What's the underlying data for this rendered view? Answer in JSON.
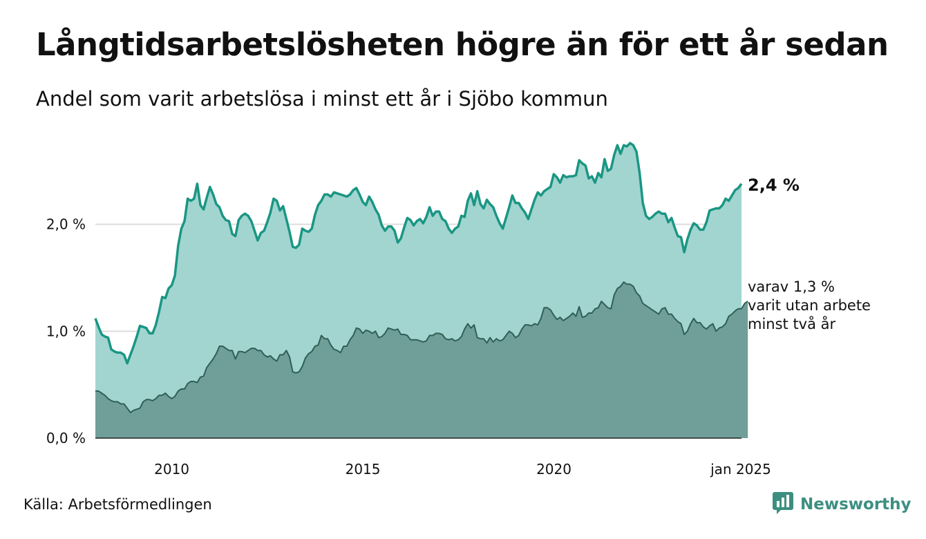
{
  "title": "Långtidsarbetslösheten högre än för ett år sedan",
  "subtitle": "Andel som varit arbetslösa i minst ett år i Sjöbo kommun",
  "source": "Källa: Arbetsförmedlingen",
  "brand": "Newsworthy",
  "colors": {
    "line_total": "#1a9683",
    "area_total": "#a2d5d0",
    "line_two_years": "#2f5f56",
    "area_two_years": "#6f9f98",
    "grid": "#dddddd"
  },
  "chart_data": {
    "type": "area",
    "title": "Långtidsarbetslösheten högre än för ett år sedan",
    "subtitle": "Andel som varit arbetslösa i minst ett år i Sjöbo kommun",
    "x_start": 2008.0,
    "x_step": 0.0833,
    "ylim": [
      0,
      3
    ],
    "y_ticks": [
      0,
      1,
      2
    ],
    "y_tick_labels": [
      "0,0 %",
      "1,0 %",
      "2,0 %"
    ],
    "x_ticks": [
      2010,
      2015,
      2020,
      2025.0
    ],
    "x_tick_labels": [
      "2010",
      "2015",
      "2020",
      "jan 2025"
    ],
    "end_label": "2,4 %",
    "note_lines": [
      "varav 1,3 %",
      "varit utan arbete",
      "minst två år"
    ],
    "series": [
      {
        "values": [
          1.12,
          1.04,
          0.97,
          0.95,
          0.94,
          0.83,
          0.81,
          0.8,
          0.8,
          0.78,
          0.7,
          0.78,
          0.86,
          0.95,
          1.05,
          1.04,
          1.03,
          0.98,
          0.98,
          1.06,
          1.18,
          1.32,
          1.31,
          1.4,
          1.43,
          1.52,
          1.8,
          1.96,
          2.03,
          2.24,
          2.22,
          2.24,
          2.38,
          2.18,
          2.14,
          2.25,
          2.35,
          2.28,
          2.19,
          2.16,
          2.08,
          2.04,
          2.03,
          1.91,
          1.89,
          2.04,
          2.08,
          2.1,
          2.08,
          2.03,
          1.94,
          1.85,
          1.92,
          1.94,
          2.02,
          2.11,
          2.24,
          2.22,
          2.13,
          2.17,
          2.05,
          1.93,
          1.79,
          1.78,
          1.81,
          1.96,
          1.94,
          1.93,
          1.96,
          2.09,
          2.18,
          2.22,
          2.28,
          2.28,
          2.26,
          2.3,
          2.29,
          2.28,
          2.27,
          2.26,
          2.28,
          2.32,
          2.34,
          2.28,
          2.21,
          2.18,
          2.26,
          2.21,
          2.14,
          2.09,
          1.99,
          1.94,
          1.98,
          1.98,
          1.94,
          1.83,
          1.87,
          1.97,
          2.06,
          2.04,
          1.99,
          2.03,
          2.05,
          2.01,
          2.07,
          2.16,
          2.08,
          2.12,
          2.12,
          2.05,
          2.03,
          1.96,
          1.92,
          1.96,
          1.98,
          2.08,
          2.07,
          2.22,
          2.29,
          2.18,
          2.31,
          2.19,
          2.15,
          2.23,
          2.19,
          2.16,
          2.08,
          2.01,
          1.96,
          2.06,
          2.16,
          2.27,
          2.2,
          2.2,
          2.15,
          2.11,
          2.05,
          2.14,
          2.23,
          2.3,
          2.27,
          2.31,
          2.33,
          2.35,
          2.47,
          2.44,
          2.39,
          2.46,
          2.44,
          2.45,
          2.45,
          2.46,
          2.6,
          2.57,
          2.55,
          2.43,
          2.45,
          2.39,
          2.48,
          2.44,
          2.61,
          2.5,
          2.52,
          2.65,
          2.74,
          2.66,
          2.74,
          2.73,
          2.76,
          2.74,
          2.68,
          2.48,
          2.2,
          2.08,
          2.05,
          2.07,
          2.1,
          2.12,
          2.1,
          2.1,
          2.02,
          2.06,
          1.97,
          1.89,
          1.88,
          1.74,
          1.86,
          1.95,
          2.01,
          1.99,
          1.95,
          1.95,
          2.02,
          2.13,
          2.14,
          2.15,
          2.15,
          2.18,
          2.24,
          2.22,
          2.27,
          2.32,
          2.34,
          2.38
        ]
      },
      {
        "values": [
          0.44,
          0.44,
          0.42,
          0.4,
          0.37,
          0.35,
          0.34,
          0.34,
          0.32,
          0.32,
          0.28,
          0.24,
          0.26,
          0.27,
          0.28,
          0.34,
          0.36,
          0.36,
          0.35,
          0.37,
          0.4,
          0.4,
          0.42,
          0.39,
          0.37,
          0.39,
          0.44,
          0.46,
          0.46,
          0.51,
          0.53,
          0.53,
          0.52,
          0.57,
          0.58,
          0.66,
          0.7,
          0.74,
          0.79,
          0.86,
          0.86,
          0.84,
          0.82,
          0.82,
          0.74,
          0.81,
          0.81,
          0.8,
          0.82,
          0.84,
          0.84,
          0.82,
          0.82,
          0.78,
          0.76,
          0.77,
          0.74,
          0.72,
          0.78,
          0.78,
          0.82,
          0.76,
          0.62,
          0.61,
          0.62,
          0.67,
          0.75,
          0.79,
          0.81,
          0.86,
          0.87,
          0.96,
          0.93,
          0.93,
          0.87,
          0.83,
          0.82,
          0.8,
          0.86,
          0.86,
          0.92,
          0.96,
          1.03,
          1.02,
          0.98,
          1.01,
          1.0,
          0.98,
          1.0,
          0.94,
          0.95,
          0.98,
          1.03,
          1.02,
          1.01,
          1.02,
          0.97,
          0.97,
          0.96,
          0.92,
          0.92,
          0.92,
          0.91,
          0.9,
          0.91,
          0.96,
          0.96,
          0.98,
          0.98,
          0.97,
          0.93,
          0.92,
          0.93,
          0.91,
          0.92,
          0.95,
          1.02,
          1.07,
          1.03,
          1.06,
          0.94,
          0.93,
          0.93,
          0.89,
          0.94,
          0.9,
          0.93,
          0.91,
          0.92,
          0.96,
          1.0,
          0.98,
          0.94,
          0.96,
          1.02,
          1.06,
          1.06,
          1.05,
          1.07,
          1.06,
          1.12,
          1.22,
          1.22,
          1.2,
          1.15,
          1.11,
          1.13,
          1.1,
          1.12,
          1.14,
          1.17,
          1.14,
          1.23,
          1.13,
          1.14,
          1.17,
          1.17,
          1.21,
          1.22,
          1.28,
          1.25,
          1.22,
          1.21,
          1.34,
          1.4,
          1.42,
          1.46,
          1.44,
          1.44,
          1.42,
          1.36,
          1.33,
          1.26,
          1.24,
          1.22,
          1.2,
          1.18,
          1.16,
          1.21,
          1.22,
          1.16,
          1.16,
          1.12,
          1.09,
          1.07,
          0.97,
          1.0,
          1.07,
          1.12,
          1.08,
          1.08,
          1.04,
          1.02,
          1.05,
          1.07,
          1.0,
          1.03,
          1.04,
          1.07,
          1.14,
          1.16,
          1.19,
          1.21,
          1.21,
          1.26,
          1.28
        ]
      }
    ]
  }
}
